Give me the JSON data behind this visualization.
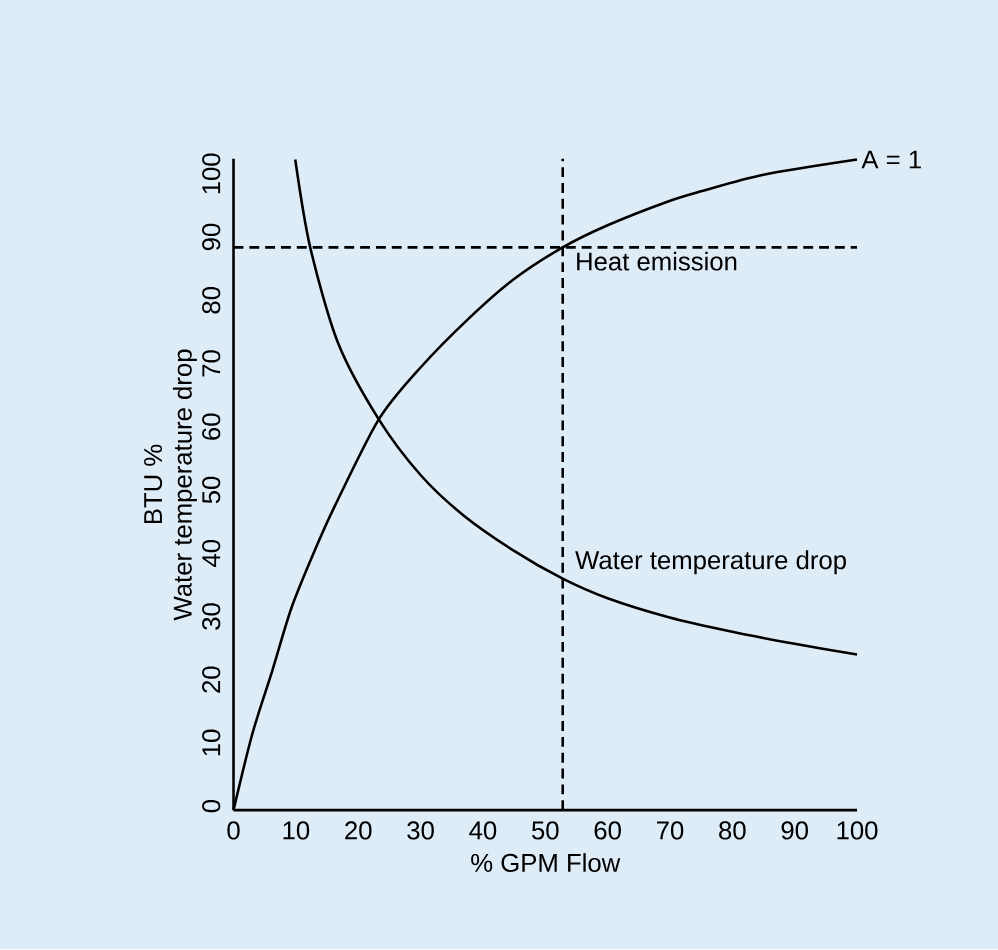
{
  "chart_data": {
    "type": "line",
    "xlabel": "% GPM Flow",
    "ylabel": "BTU %",
    "xlim": [
      0,
      100
    ],
    "ylim": [
      0,
      103
    ],
    "xticks": [
      0,
      10,
      20,
      30,
      40,
      50,
      60,
      70,
      80,
      90,
      100
    ],
    "yticks": [
      0,
      10,
      20,
      30,
      40,
      50,
      60,
      70,
      80,
      90,
      100
    ],
    "grid": false,
    "legend": false,
    "marker": "none",
    "line_style": "solid",
    "series": [
      {
        "name": "Heat emission",
        "color": "#000000",
        "x": [
          0,
          3,
          6.2,
          9.3,
          13,
          16.2,
          23.3,
          30,
          38,
          45,
          52.8,
          60,
          69.8,
          75.1,
          85,
          100
        ],
        "values": [
          0,
          12,
          22,
          32,
          41,
          48,
          61.8,
          70,
          78,
          84,
          89,
          92.5,
          96.3,
          97.9,
          100.5,
          102.9
        ]
      },
      {
        "name": "Water temperature drop",
        "color": "#000000",
        "x": [
          9.9,
          12.3,
          16.8,
          23.3,
          30,
          36.9,
          45,
          52.8,
          60,
          69.8,
          80,
          90,
          100
        ],
        "values": [
          102.9,
          89,
          73.8,
          61.8,
          53,
          46.6,
          41,
          36.6,
          33.5,
          30.5,
          28.2,
          26.3,
          24.6
        ]
      }
    ],
    "ref_lines": [
      {
        "axis": "y",
        "value": 89,
        "color": "#000000",
        "line_style": "dashed"
      },
      {
        "axis": "x",
        "value": 52.8,
        "color": "#000000",
        "line_style": "dashed"
      }
    ],
    "annotations": [
      "Water temperature drop",
      {
        "text": "A = 1",
        "x": 100,
        "y": 102.9
      }
    ]
  }
}
